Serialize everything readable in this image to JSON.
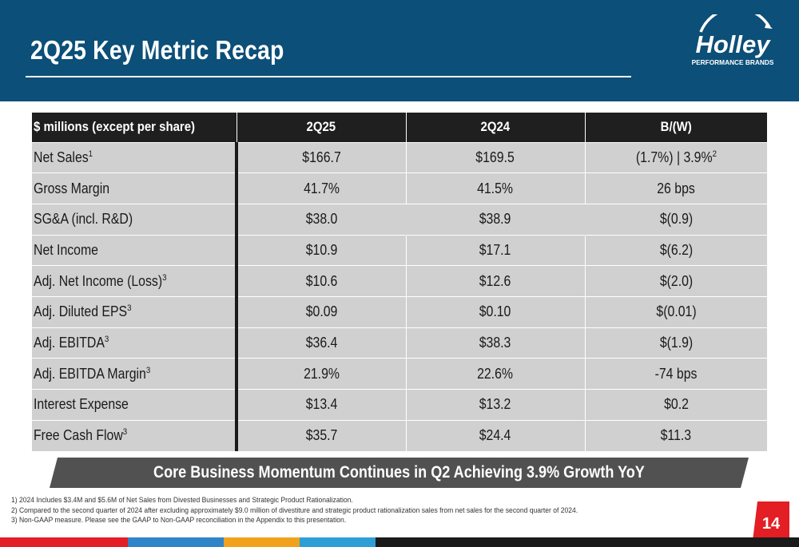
{
  "title": "2Q25 Key Metric Recap",
  "logo": {
    "brand": "Holley",
    "tagline": "PERFORMANCE BRANDS"
  },
  "table": {
    "headers": [
      "$ millions (except per share)",
      "2Q25",
      "2Q24",
      "B/(W)"
    ],
    "rows": [
      {
        "label": "Net Sales",
        "sup": "1",
        "v1": "$166.7",
        "v2": "$169.5",
        "v3": "(1.7%) | 3.9%",
        "v3sup": "2"
      },
      {
        "label": "Gross Margin",
        "sup": "",
        "v1": "41.7%",
        "v2": "41.5%",
        "v3": "26 bps",
        "v3sup": ""
      },
      {
        "label": "SG&A (incl. R&D)",
        "sup": "",
        "v1": "$38.0",
        "v2": "$38.9",
        "v3": "$(0.9)",
        "v3sup": ""
      },
      {
        "label": "Net Income",
        "sup": "",
        "v1": "$10.9",
        "v2": "$17.1",
        "v3": "$(6.2)",
        "v3sup": ""
      },
      {
        "label": "Adj. Net Income (Loss)",
        "sup": "3",
        "v1": "$10.6",
        "v2": "$12.6",
        "v3": "$(2.0)",
        "v3sup": ""
      },
      {
        "label": "Adj. Diluted EPS",
        "sup": "3",
        "v1": "$0.09",
        "v2": "$0.10",
        "v3": "$(0.01)",
        "v3sup": ""
      },
      {
        "label": "Adj. EBITDA",
        "sup": "3",
        "v1": "$36.4",
        "v2": "$38.3",
        "v3": "$(1.9)",
        "v3sup": ""
      },
      {
        "label": "Adj. EBITDA Margin",
        "sup": "3",
        "v1": "21.9%",
        "v2": "22.6%",
        "v3": "-74 bps",
        "v3sup": ""
      },
      {
        "label": "Interest Expense",
        "sup": "",
        "v1": "$13.4",
        "v2": "$13.2",
        "v3": "$0.2",
        "v3sup": ""
      },
      {
        "label": "Free Cash Flow",
        "sup": "3",
        "v1": "$35.7",
        "v2": "$24.4",
        "v3": "$11.3",
        "v3sup": ""
      }
    ]
  },
  "banner": "Core Business Momentum Continues in Q2 Achieving 3.9% Growth YoY",
  "footnotes": [
    "1) 2024 Includes $3.4M and $5.6M of Net Sales from Divested Businesses and Strategic Product Rationalization.",
    "2) Compared to the second quarter of 2024 after excluding approximately $9.0 million of divestiture and strategic product rationalization sales from net sales for the second quarter of 2024.",
    "3) Non-GAAP measure. Please see the GAAP to Non-GAAP reconciliation in the Appendix to this presentation."
  ],
  "page_number": "14",
  "colors": {
    "header": "#0c4f78",
    "table_header": "#1f1f1f",
    "table_cell": "#d0d0d0",
    "banner": "#515151",
    "page_badge": "#e31e24",
    "stripe": [
      "#e31e24",
      "#2e86c8",
      "#f0a21c",
      "#2e9fd6",
      "#1a1a1a"
    ]
  }
}
